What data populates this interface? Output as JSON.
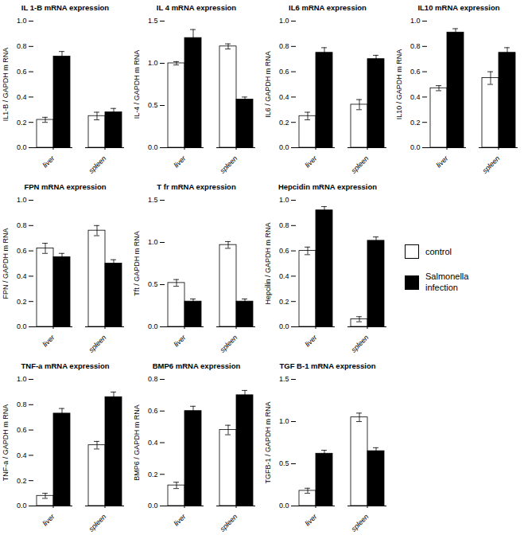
{
  "chart_data": [
    {
      "type": "bar",
      "title": "IL 1-B mRNA expression",
      "ylabel": "IL1-B / GAPDH m RNA",
      "categories": [
        "liver",
        "spleen"
      ],
      "series": [
        {
          "name": "control",
          "color": "white",
          "values": [
            0.22,
            0.25
          ],
          "errors": [
            0.02,
            0.03
          ]
        },
        {
          "name": "Salmonella\ninfection",
          "color": "black",
          "values": [
            0.72,
            0.28
          ],
          "errors": [
            0.04,
            0.03
          ]
        }
      ],
      "ylim": [
        0,
        1.0
      ],
      "yticks": [
        {
          "value": 0.0,
          "label": "0.0"
        },
        0.2,
        0.4,
        0.6,
        0.8,
        {
          "value": 1.0,
          "label": "1.0"
        }
      ]
    },
    {
      "type": "bar",
      "title": "IL 4 mRNA expression",
      "ylabel": "IL-4 / GAPDH m RNA",
      "categories": [
        "liver",
        "spleen"
      ],
      "series": [
        {
          "name": "control",
          "color": "white",
          "values": [
            1.0,
            1.2
          ],
          "errors": [
            0.02,
            0.03
          ]
        },
        {
          "name": "Salmonella\ninfection",
          "color": "black",
          "values": [
            1.3,
            0.57
          ],
          "errors": [
            0.1,
            0.03
          ]
        }
      ],
      "ylim": [
        0,
        1.5
      ],
      "yticks": [
        {
          "value": 0.0,
          "label": "0.0"
        },
        0.5,
        {
          "value": 1.0,
          "label": "1.0"
        },
        1.5
      ]
    },
    {
      "type": "bar",
      "title": "IL6 mRNA expression",
      "ylabel": "IL6 / GAPDH m RNA",
      "categories": [
        "liver",
        "spleen"
      ],
      "series": [
        {
          "name": "control",
          "color": "white",
          "values": [
            0.25,
            0.34
          ],
          "errors": [
            0.03,
            0.04
          ]
        },
        {
          "name": "Salmonella\ninfection",
          "color": "black",
          "values": [
            0.75,
            0.7
          ],
          "errors": [
            0.04,
            0.03
          ]
        }
      ],
      "ylim": [
        0,
        1.0
      ],
      "yticks": [
        {
          "value": 0.0,
          "label": "0.0"
        },
        0.2,
        0.4,
        0.6,
        0.8,
        {
          "value": 1.0,
          "label": "1.0"
        }
      ]
    },
    {
      "type": "bar",
      "title": "IL10 mRNA expression",
      "ylabel": "IL10 / GAPDH m RNA",
      "categories": [
        "liver",
        "spleen"
      ],
      "series": [
        {
          "name": "control",
          "color": "white",
          "values": [
            0.47,
            0.55
          ],
          "errors": [
            0.02,
            0.05
          ]
        },
        {
          "name": "Salmonella\ninfection",
          "color": "black",
          "values": [
            0.91,
            0.75
          ],
          "errors": [
            0.03,
            0.04
          ]
        }
      ],
      "ylim": [
        0,
        1.0
      ],
      "yticks": [
        {
          "value": 0.0,
          "label": "0.0"
        },
        0.2,
        0.4,
        0.6,
        0.8,
        {
          "value": 1.0,
          "label": "1.0"
        }
      ]
    },
    {
      "type": "bar",
      "title": "FPN mRNA expression",
      "ylabel": "FPN / GAPDH m RNA",
      "categories": [
        "liver",
        "spleen"
      ],
      "series": [
        {
          "name": "control",
          "color": "white",
          "values": [
            0.62,
            0.76
          ],
          "errors": [
            0.04,
            0.04
          ]
        },
        {
          "name": "Salmonella\ninfection",
          "color": "black",
          "values": [
            0.55,
            0.5
          ],
          "errors": [
            0.03,
            0.03
          ]
        }
      ],
      "ylim": [
        0,
        1.0
      ],
      "yticks": [
        {
          "value": 0.0,
          "label": "0.0"
        },
        0.2,
        0.4,
        0.6,
        0.8,
        {
          "value": 1.0,
          "label": "1.0"
        }
      ]
    },
    {
      "type": "bar",
      "title": "T fr mRNA expression",
      "ylabel": "Tft / GAPDH m RNA",
      "categories": [
        "liver",
        "spleen"
      ],
      "series": [
        {
          "name": "control",
          "color": "white",
          "values": [
            0.52,
            0.97
          ],
          "errors": [
            0.04,
            0.04
          ]
        },
        {
          "name": "Salmonella\ninfection",
          "color": "black",
          "values": [
            0.3,
            0.3
          ],
          "errors": [
            0.03,
            0.03
          ]
        }
      ],
      "ylim": [
        0,
        1.5
      ],
      "yticks": [
        {
          "value": 0.0,
          "label": "0.0"
        },
        0.5,
        {
          "value": 1.0,
          "label": "1.0"
        },
        1.5
      ]
    },
    {
      "type": "bar",
      "title": "Hepcidin mRNA expression",
      "ylabel": "Hepcilin / GAPDH m RNA",
      "categories": [
        "liver",
        "spleen"
      ],
      "series": [
        {
          "name": "control",
          "color": "white",
          "values": [
            0.6,
            0.06
          ],
          "errors": [
            0.03,
            0.02
          ]
        },
        {
          "name": "Salmonella\ninfection",
          "color": "black",
          "values": [
            0.92,
            0.68
          ],
          "errors": [
            0.03,
            0.03
          ]
        }
      ],
      "ylim": [
        0,
        1.0
      ],
      "yticks": [
        {
          "value": 0.0,
          "label": "0.0"
        },
        0.2,
        0.4,
        0.6,
        0.8,
        {
          "value": 1.0,
          "label": "1.0"
        }
      ]
    },
    {
      "type": "bar",
      "title": "TNF-a mRNA expression",
      "ylabel": "TNF-a / GAPDH m RNA",
      "categories": [
        "liver",
        "spleen"
      ],
      "series": [
        {
          "name": "control",
          "color": "white",
          "values": [
            0.08,
            0.48
          ],
          "errors": [
            0.02,
            0.03
          ]
        },
        {
          "name": "Salmonella\ninfection",
          "color": "black",
          "values": [
            0.73,
            0.86
          ],
          "errors": [
            0.04,
            0.04
          ]
        }
      ],
      "ylim": [
        0,
        1.0
      ],
      "yticks": [
        {
          "value": 0.0,
          "label": "0.0"
        },
        0.2,
        0.4,
        0.6,
        0.8,
        {
          "value": 1.0,
          "label": "1.0"
        }
      ]
    },
    {
      "type": "bar",
      "title": "BMP6 mRNA expression",
      "ylabel": "BMP6 / GAPDH m RNA",
      "categories": [
        "liver",
        "spleen"
      ],
      "series": [
        {
          "name": "control",
          "color": "white",
          "values": [
            0.13,
            0.48
          ],
          "errors": [
            0.02,
            0.03
          ]
        },
        {
          "name": "Salmonella\ninfection",
          "color": "black",
          "values": [
            0.6,
            0.7
          ],
          "errors": [
            0.03,
            0.03
          ]
        }
      ],
      "ylim": [
        0,
        0.8
      ],
      "yticks": [
        {
          "value": 0.0,
          "label": "0.0"
        },
        0.2,
        0.4,
        0.6,
        0.8
      ]
    },
    {
      "type": "bar",
      "title": "TGF B-1 mRNA expression",
      "ylabel": "TGFB-1 / GAPDH m RNA",
      "categories": [
        "liver",
        "spleen"
      ],
      "series": [
        {
          "name": "control",
          "color": "white",
          "values": [
            0.18,
            1.05
          ],
          "errors": [
            0.03,
            0.05
          ]
        },
        {
          "name": "Salmonella\ninfection",
          "color": "black",
          "values": [
            0.62,
            0.65
          ],
          "errors": [
            0.04,
            0.04
          ]
        }
      ],
      "ylim": [
        0,
        1.5
      ],
      "yticks": [
        {
          "value": 0.0,
          "label": "0.0"
        },
        0.5,
        {
          "value": 1.0,
          "label": "1.0"
        },
        1.5
      ]
    }
  ]
}
